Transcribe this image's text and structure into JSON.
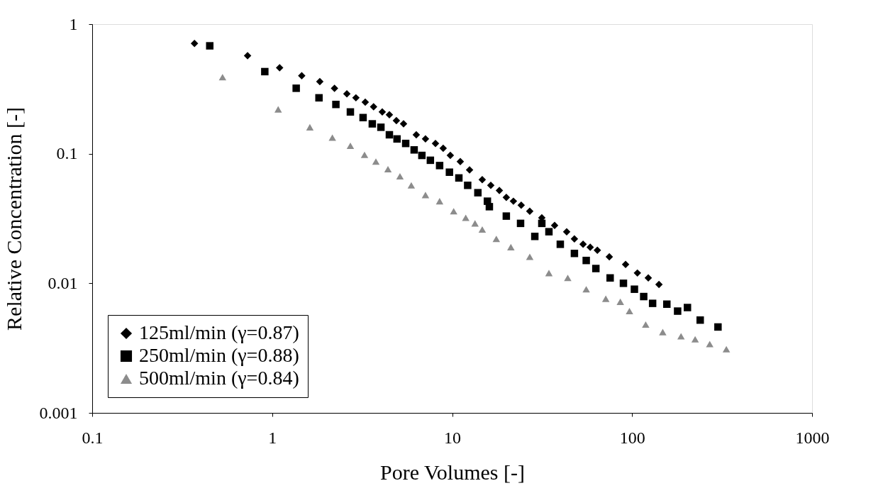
{
  "chart_data": {
    "type": "scatter",
    "xlabel": "Pore Volumes [-]",
    "ylabel": "Relative Concentration [-]",
    "log": "xy",
    "xlim": [
      0.1,
      1000
    ],
    "xticks": [
      0.1,
      1,
      10,
      100,
      1000
    ],
    "ylim": [
      0.001,
      1
    ],
    "yticks": [
      0.001,
      0.01,
      0.1,
      1
    ],
    "grid": false,
    "legend": "bottom left",
    "series": [
      {
        "name": "125ml/min (γ=0.87)",
        "color": "#000000",
        "marker": "diamond",
        "x": [
          0.37,
          0.73,
          1.1,
          1.46,
          1.84,
          2.22,
          2.6,
          2.92,
          3.29,
          3.66,
          4.09,
          4.48,
          4.9,
          5.37,
          6.32,
          7.11,
          8.08,
          8.92,
          9.77,
          11.1,
          12.5,
          14.7,
          16.4,
          18.3,
          20.0,
          21.9,
          24.2,
          27.0,
          31.5,
          37.1,
          43.3,
          47.8,
          53.4,
          58.5,
          64.1,
          74.7,
          92.0,
          107,
          123,
          141
        ],
        "values": [
          0.71,
          0.57,
          0.46,
          0.4,
          0.36,
          0.32,
          0.29,
          0.27,
          0.25,
          0.23,
          0.21,
          0.2,
          0.18,
          0.17,
          0.14,
          0.13,
          0.12,
          0.11,
          0.097,
          0.087,
          0.075,
          0.063,
          0.057,
          0.052,
          0.046,
          0.043,
          0.04,
          0.036,
          0.032,
          0.028,
          0.025,
          0.022,
          0.02,
          0.019,
          0.018,
          0.016,
          0.014,
          0.012,
          0.011,
          0.0098
        ]
      },
      {
        "name": "250ml/min (γ=0.88)",
        "color": "#000000",
        "marker": "square",
        "x": [
          0.45,
          0.91,
          1.36,
          1.82,
          2.26,
          2.72,
          3.2,
          3.6,
          4.02,
          4.48,
          4.94,
          5.52,
          6.15,
          6.79,
          7.57,
          8.52,
          9.66,
          10.9,
          12.2,
          13.9,
          15.7,
          16.1,
          20.0,
          24.0,
          28.8,
          31.5,
          34.5,
          39.9,
          47.8,
          55.6,
          62.9,
          75.5,
          89.5,
          103,
          116,
          130,
          156,
          179,
          203,
          239,
          300
        ],
        "values": [
          0.68,
          0.43,
          0.32,
          0.27,
          0.24,
          0.21,
          0.19,
          0.17,
          0.16,
          0.14,
          0.13,
          0.12,
          0.107,
          0.097,
          0.089,
          0.081,
          0.072,
          0.065,
          0.057,
          0.05,
          0.043,
          0.039,
          0.033,
          0.029,
          0.023,
          0.029,
          0.025,
          0.02,
          0.017,
          0.015,
          0.013,
          0.011,
          0.01,
          0.009,
          0.0079,
          0.007,
          0.0069,
          0.0061,
          0.0065,
          0.0052,
          0.0046
        ]
      },
      {
        "name": "500ml/min (γ=0.84)",
        "color": "#8c8c8c",
        "marker": "triangle",
        "x": [
          0.53,
          1.08,
          1.62,
          2.16,
          2.72,
          3.26,
          3.77,
          4.4,
          5.13,
          5.93,
          7.11,
          8.52,
          10.2,
          11.9,
          13.4,
          14.7,
          17.6,
          21.2,
          27.0,
          34.5,
          43.9,
          55.6,
          71.4,
          86.0,
          96.7,
          119,
          148,
          187,
          224,
          270,
          334
        ],
        "values": [
          0.39,
          0.22,
          0.16,
          0.133,
          0.115,
          0.098,
          0.087,
          0.076,
          0.067,
          0.057,
          0.048,
          0.043,
          0.036,
          0.032,
          0.029,
          0.026,
          0.022,
          0.019,
          0.016,
          0.012,
          0.011,
          0.009,
          0.0076,
          0.0072,
          0.0061,
          0.0048,
          0.0042,
          0.0039,
          0.0037,
          0.0034,
          0.0031
        ]
      }
    ]
  }
}
